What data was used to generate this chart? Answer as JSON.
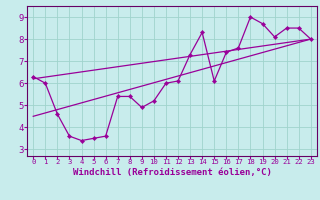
{
  "xlabel": "Windchill (Refroidissement éolien,°C)",
  "bg_color": "#c8ecec",
  "line_color": "#990099",
  "spine_color": "#660066",
  "xlim": [
    -0.5,
    23.5
  ],
  "ylim": [
    2.7,
    9.5
  ],
  "xticks": [
    0,
    1,
    2,
    3,
    4,
    5,
    6,
    7,
    8,
    9,
    10,
    11,
    12,
    13,
    14,
    15,
    16,
    17,
    18,
    19,
    20,
    21,
    22,
    23
  ],
  "yticks": [
    3,
    4,
    5,
    6,
    7,
    8,
    9
  ],
  "line1_x": [
    0,
    1,
    2,
    3,
    4,
    5,
    6,
    7,
    8,
    9,
    10,
    11,
    12,
    13,
    14,
    15,
    16,
    17,
    18,
    19,
    20,
    21,
    22,
    23
  ],
  "line1_y": [
    6.3,
    6.0,
    4.6,
    3.6,
    3.4,
    3.5,
    3.6,
    5.4,
    5.4,
    4.9,
    5.2,
    6.0,
    6.1,
    7.3,
    8.3,
    6.1,
    7.4,
    7.6,
    9.0,
    8.7,
    8.1,
    8.5,
    8.5,
    8.0
  ],
  "line2_x": [
    0,
    23
  ],
  "line2_y": [
    4.5,
    8.0
  ],
  "line3_x": [
    0,
    23
  ],
  "line3_y": [
    6.2,
    8.0
  ],
  "grid_color": "#a0d4cc",
  "xlabel_fontsize": 6.5,
  "tick_fontsize": 6.5
}
